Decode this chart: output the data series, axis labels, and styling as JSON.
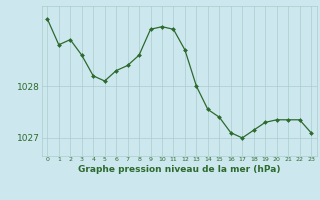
{
  "x": [
    0,
    1,
    2,
    3,
    4,
    5,
    6,
    7,
    8,
    9,
    10,
    11,
    12,
    13,
    14,
    15,
    16,
    17,
    18,
    19,
    20,
    21,
    22,
    23
  ],
  "y": [
    1029.3,
    1028.8,
    1028.9,
    1028.6,
    1028.2,
    1028.1,
    1028.3,
    1028.4,
    1028.6,
    1029.1,
    1029.15,
    1029.1,
    1028.7,
    1028.0,
    1027.55,
    1027.4,
    1027.1,
    1027.0,
    1027.15,
    1027.3,
    1027.35,
    1027.35,
    1027.35,
    1027.1
  ],
  "line_color": "#2d6a2d",
  "marker_color": "#2d6a2d",
  "bg_color": "#cce8ee",
  "grid_color": "#aacccc",
  "axis_label_color": "#2d6a2d",
  "tick_label_color": "#2d6a2d",
  "xlabel": "Graphe pression niveau de la mer (hPa)",
  "yticks": [
    1027,
    1028
  ],
  "ylim": [
    1026.65,
    1029.55
  ],
  "xlim": [
    -0.5,
    23.5
  ]
}
